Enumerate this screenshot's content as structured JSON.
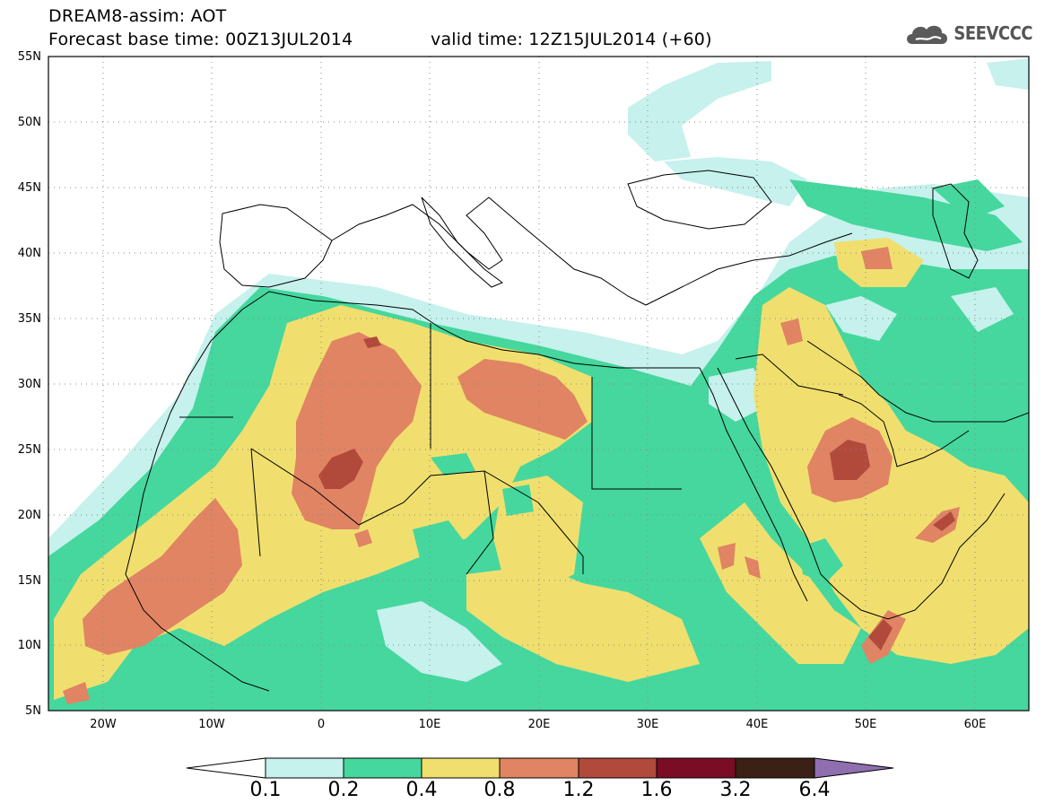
{
  "header": {
    "line1": "DREAM8-assim: AOT",
    "base_time": "Forecast base time: 00Z13JUL2014",
    "valid_time": "valid time: 12Z15JUL2014 (+60)"
  },
  "logo": {
    "text": "SEEVCCC",
    "icon": "cloud-icon"
  },
  "map": {
    "lat_labels": [
      "55N",
      "50N",
      "45N",
      "40N",
      "35N",
      "30N",
      "25N",
      "20N",
      "15N",
      "10N",
      "5N"
    ],
    "lon_labels": [
      "20W",
      "10W",
      "0",
      "10E",
      "20E",
      "30E",
      "40E",
      "50E",
      "60E"
    ],
    "lat_range": [
      5,
      55
    ],
    "lon_range": [
      -25,
      65
    ],
    "grid": "dotted"
  },
  "legend": {
    "levels": [
      "0.1",
      "0.2",
      "0.4",
      "0.8",
      "1.2",
      "1.6",
      "3.2",
      "6.4"
    ],
    "colors": [
      "#c6f1ec",
      "#45d79e",
      "#f0df6e",
      "#e08463",
      "#b24a3c",
      "#7a0c26",
      "#3a2015",
      "#8f6fb0"
    ]
  }
}
